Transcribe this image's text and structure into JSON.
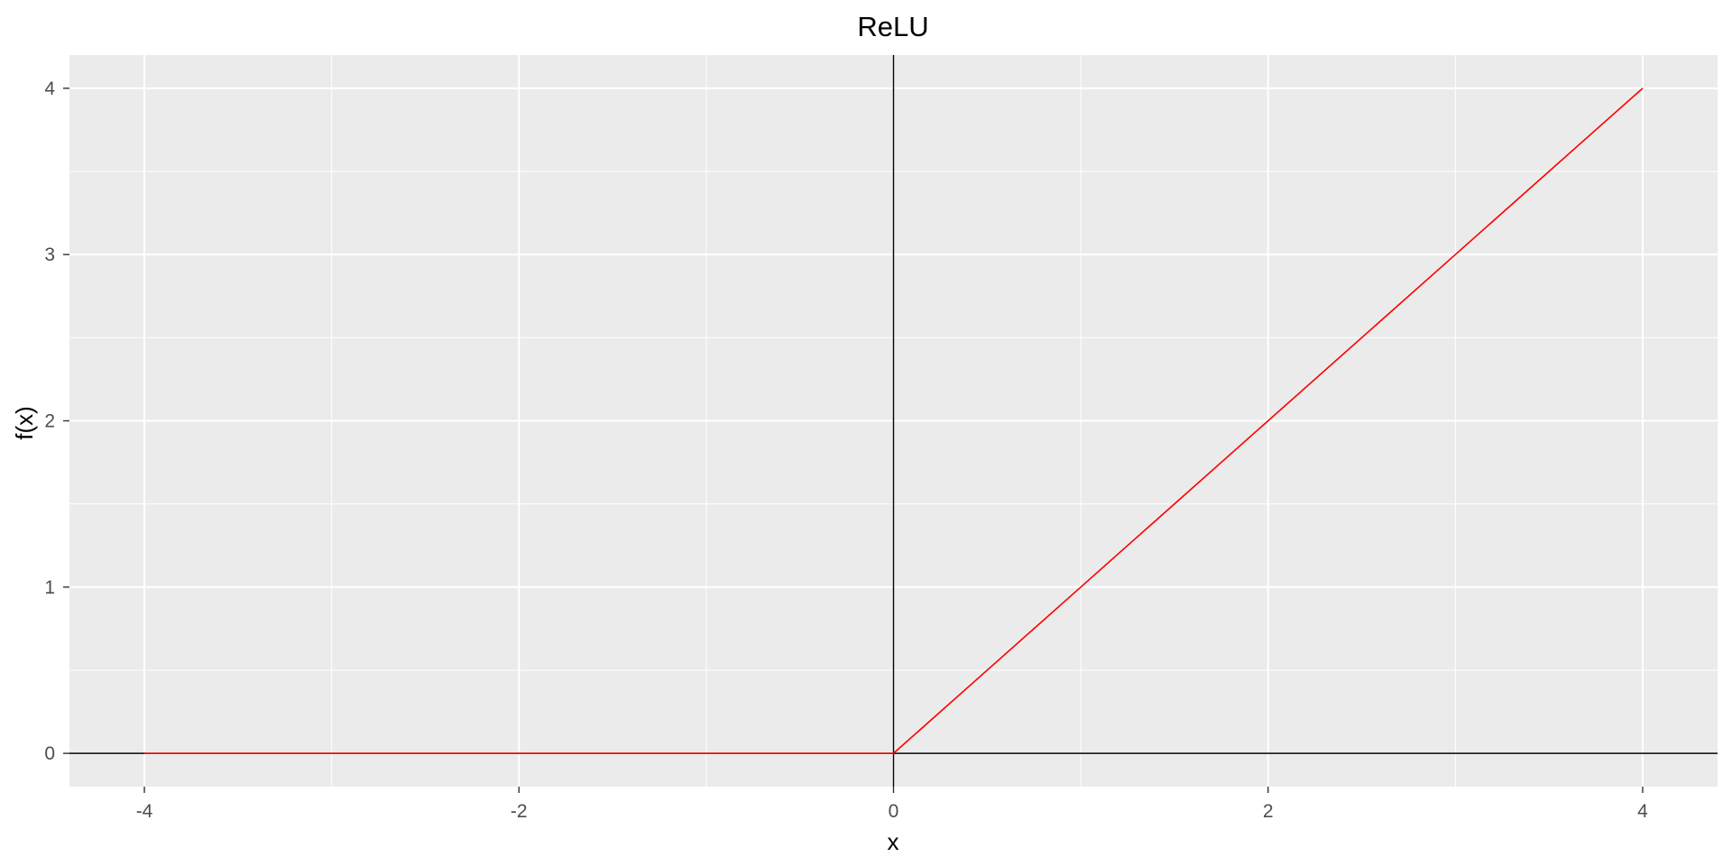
{
  "chart_data": {
    "type": "line",
    "title": "ReLU",
    "xlabel": "x",
    "ylabel": "f(x)",
    "xlim": [
      -4.4,
      4.4
    ],
    "ylim": [
      -0.2,
      4.2
    ],
    "x_ticks": [
      -4,
      -2,
      0,
      2,
      4
    ],
    "y_ticks": [
      0,
      1,
      2,
      3,
      4
    ],
    "x_minor": [
      -3,
      -1,
      1,
      3
    ],
    "y_minor": [
      0.5,
      1.5,
      2.5,
      3.5
    ],
    "grid": true,
    "reference_lines": {
      "hline": 0,
      "vline": 0
    },
    "series": [
      {
        "x": [
          -4,
          -3,
          -2,
          -1,
          0,
          1,
          2,
          3,
          4
        ],
        "y": [
          0,
          0,
          0,
          0,
          0,
          1,
          2,
          3,
          4
        ],
        "color": "#ff0000"
      }
    ],
    "colors": {
      "panel_bg": "#ebebeb",
      "grid": "#ffffff",
      "reference": "#000000",
      "tick": "#333333",
      "tick_label": "#4d4d4d"
    }
  }
}
